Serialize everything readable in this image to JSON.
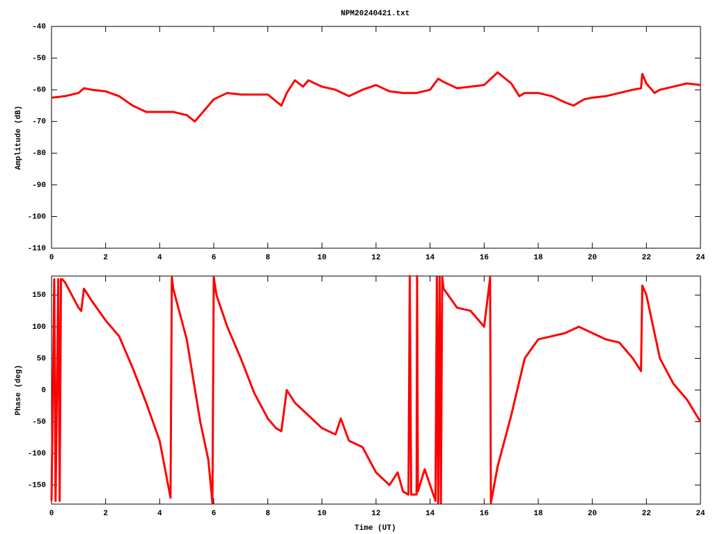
{
  "chart_data": [
    {
      "type": "line",
      "title": "NPM20240421.txt",
      "ylabel": "Amplitude (dB)",
      "color": "#ff0000",
      "x": [
        0,
        0.5,
        1,
        1.2,
        1.5,
        2,
        2.5,
        3,
        3.5,
        4,
        4.5,
        5,
        5.3,
        5.5,
        6,
        6.5,
        7,
        7.5,
        8,
        8.5,
        8.7,
        9,
        9.3,
        9.5,
        10,
        10.5,
        11,
        11.5,
        12,
        12.5,
        13,
        13.5,
        14,
        14.3,
        14.5,
        15,
        15.5,
        16,
        16.5,
        17,
        17.3,
        17.5,
        18,
        18.5,
        19,
        19.3,
        19.7,
        20,
        20.5,
        21,
        21.5,
        21.8,
        21.85,
        22,
        22.3,
        22.5,
        23,
        23.5,
        24
      ],
      "values": [
        -62.5,
        -62,
        -61,
        -59.5,
        -60,
        -60.5,
        -62,
        -65,
        -67,
        -67,
        -67,
        -68,
        -70,
        -68,
        -63,
        -61,
        -61.5,
        -61.5,
        -61.5,
        -65,
        -61,
        -57,
        -59,
        -57,
        -59,
        -60,
        -62,
        -60,
        -58.5,
        -60.5,
        -61,
        -61,
        -60,
        -56.5,
        -57.5,
        -59.5,
        -59,
        -58.5,
        -54.5,
        -58,
        -62,
        -61,
        -61,
        -62,
        -64,
        -65,
        -63,
        -62.5,
        -62,
        -61,
        -60,
        -59.5,
        -55,
        -58,
        -61,
        -60,
        -59,
        -58,
        -58.5
      ],
      "xlim": [
        0,
        24
      ],
      "xticks": [
        0,
        2,
        4,
        6,
        8,
        10,
        12,
        14,
        16,
        18,
        20,
        22,
        24
      ],
      "ylim": [
        -110,
        -40
      ],
      "yticks": [
        -40,
        -50,
        -60,
        -70,
        -80,
        -90,
        -100,
        -110
      ]
    },
    {
      "type": "line",
      "xlabel": "Time (UT)",
      "ylabel": "Phase (deg)",
      "color": "#ff0000",
      "x": [
        0,
        0.1,
        0.15,
        0.25,
        0.3,
        0.35,
        0.4,
        0.5,
        1,
        1.1,
        1.2,
        1.5,
        2,
        2.5,
        3,
        3.5,
        4,
        4.4,
        4.45,
        4.5,
        5,
        5.5,
        5.8,
        5.95,
        6,
        6.1,
        6.5,
        7,
        7.5,
        8,
        8.3,
        8.5,
        8.7,
        9,
        9.5,
        10,
        10.5,
        10.7,
        11,
        11.5,
        12,
        12.5,
        12.8,
        13,
        13.2,
        13.25,
        13.3,
        13.5,
        13.52,
        13.55,
        13.8,
        14,
        14.2,
        14.25,
        14.3,
        14.35,
        14.4,
        14.45,
        14.5,
        15,
        15.5,
        16,
        16.2,
        16.22,
        16.25,
        16.5,
        17,
        17.5,
        18,
        18.5,
        19,
        19.5,
        20,
        20.5,
        21,
        21.5,
        21.8,
        21.85,
        22,
        22.5,
        23,
        23.5,
        24
      ],
      "values": [
        -175,
        175,
        -175,
        175,
        -175,
        175,
        175,
        170,
        130,
        125,
        160,
        140,
        110,
        85,
        35,
        -20,
        -80,
        -170,
        178,
        160,
        80,
        -50,
        -110,
        -178,
        178,
        150,
        100,
        50,
        -5,
        -45,
        -60,
        -65,
        0,
        -20,
        -40,
        -60,
        -70,
        -45,
        -80,
        -90,
        -130,
        -150,
        -130,
        -160,
        -165,
        180,
        -165,
        -165,
        180,
        -160,
        -125,
        -150,
        -175,
        178,
        -178,
        178,
        -178,
        178,
        160,
        130,
        125,
        100,
        170,
        178,
        -178,
        -120,
        -40,
        50,
        80,
        85,
        90,
        100,
        90,
        80,
        75,
        50,
        30,
        165,
        150,
        50,
        10,
        -15,
        -50
      ],
      "xlim": [
        0,
        24
      ],
      "xticks": [
        0,
        2,
        4,
        6,
        8,
        10,
        12,
        14,
        16,
        18,
        20,
        22,
        24
      ],
      "ylim": [
        -180,
        180
      ],
      "yticks": [
        -150,
        -100,
        -50,
        0,
        50,
        100,
        150
      ]
    }
  ]
}
